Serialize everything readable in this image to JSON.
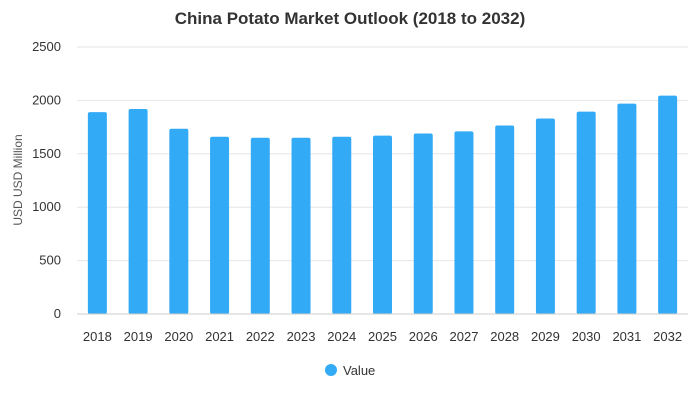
{
  "chart_data": {
    "type": "bar",
    "title": "China Potato Market Outlook (2018 to 2032)",
    "xlabel": "",
    "ylabel": "USD USD Million",
    "categories": [
      "2018",
      "2019",
      "2020",
      "2021",
      "2022",
      "2023",
      "2024",
      "2025",
      "2026",
      "2027",
      "2028",
      "2029",
      "2030",
      "2031",
      "2032"
    ],
    "series": [
      {
        "name": "Value",
        "color": "#33aaf5",
        "values": [
          1890,
          1920,
          1735,
          1660,
          1650,
          1650,
          1660,
          1670,
          1690,
          1710,
          1765,
          1830,
          1895,
          1970,
          2045
        ]
      }
    ],
    "ylim": [
      0,
      2500
    ],
    "yticks": [
      0,
      500,
      1000,
      1500,
      2000,
      2500
    ],
    "grid": true,
    "legend_position": "bottom-center"
  }
}
